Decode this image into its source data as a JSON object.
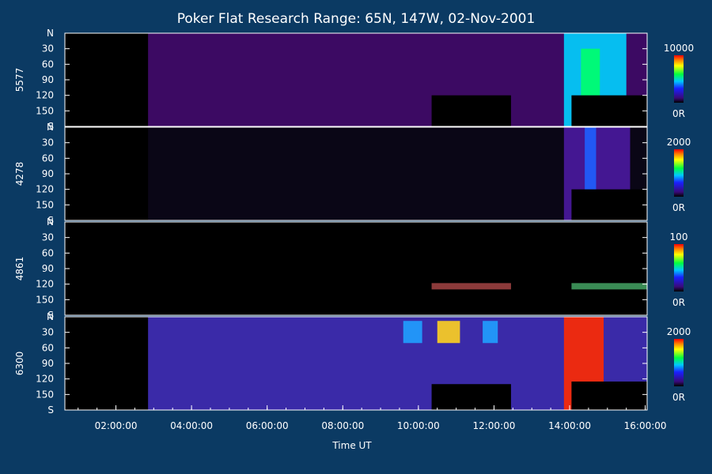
{
  "chart_data": {
    "type": "heatmap",
    "title": "Poker Flat Research Range: 65N, 147W, 02-Nov-2001",
    "xlabel": "Time UT",
    "x_ticks": [
      "02:00:00",
      "04:00:00",
      "06:00:00",
      "08:00:00",
      "10:00:00",
      "12:00:00",
      "14:00:00",
      "16:00:00"
    ],
    "x_tick_hours": [
      2,
      4,
      6,
      8,
      10,
      12,
      14,
      16
    ],
    "xlim_hours": [
      0.65,
      16.05
    ],
    "y_tick_labels": [
      "N",
      "30",
      "60",
      "90",
      "120",
      "150",
      "S"
    ],
    "y_tick_values": [
      0,
      30,
      60,
      90,
      120,
      150,
      180
    ],
    "colorbar_min_label": "0R",
    "panels": [
      {
        "wavelength": "5577",
        "colorbar_max": "10000",
        "data_start_hours": 2.85,
        "background_color": "#3c0a63",
        "features": [
          {
            "start": 13.85,
            "end": 15.5,
            "intensity_level": "high",
            "color": "#00d2ff"
          },
          {
            "start": 14.3,
            "end": 14.8,
            "intensity_level": "peak",
            "color": "#00ff6a"
          }
        ],
        "masked_blocks": [
          {
            "start": 10.35,
            "end": 12.45,
            "lat_from": 120,
            "lat_to": 180
          },
          {
            "start": 14.05,
            "end": 16.05,
            "lat_from": 120,
            "lat_to": 180
          }
        ]
      },
      {
        "wavelength": "4278",
        "colorbar_max": "2000",
        "data_start_hours": 2.85,
        "background_color": "#0a0616",
        "features": [
          {
            "start": 13.85,
            "end": 15.6,
            "intensity_level": "moderate",
            "color": "#4a1aa0"
          },
          {
            "start": 14.4,
            "end": 14.7,
            "intensity_level": "high",
            "color": "#1f5fff"
          }
        ],
        "masked_blocks": [
          {
            "start": 14.05,
            "end": 16.05,
            "lat_from": 120,
            "lat_to": 180
          }
        ]
      },
      {
        "wavelength": "4861",
        "colorbar_max": "100",
        "data_start_hours": 2.85,
        "background_color": "#000000",
        "features": [
          {
            "start": 10.35,
            "end": 12.45,
            "intensity_level": "noise",
            "color": "#ff6a6a"
          },
          {
            "start": 14.05,
            "end": 16.05,
            "intensity_level": "noise",
            "color": "#6aff9a"
          }
        ],
        "masked_blocks": []
      },
      {
        "wavelength": "6300",
        "colorbar_max": "2000",
        "data_start_hours": 2.85,
        "background_color": "#3a2aa8",
        "features": [
          {
            "start": 9.6,
            "end": 10.1,
            "intensity_level": "moderate",
            "color": "#20a0ff"
          },
          {
            "start": 10.5,
            "end": 11.1,
            "intensity_level": "high",
            "color": "#ffd21f"
          },
          {
            "start": 11.7,
            "end": 12.1,
            "intensity_level": "moderate",
            "color": "#20a0ff"
          },
          {
            "start": 13.85,
            "end": 14.9,
            "intensity_level": "peak",
            "color": "#ff2a00"
          }
        ],
        "masked_blocks": [
          {
            "start": 10.35,
            "end": 12.45,
            "lat_from": 130,
            "lat_to": 180
          },
          {
            "start": 14.05,
            "end": 16.05,
            "lat_from": 125,
            "lat_to": 180
          }
        ]
      }
    ]
  }
}
